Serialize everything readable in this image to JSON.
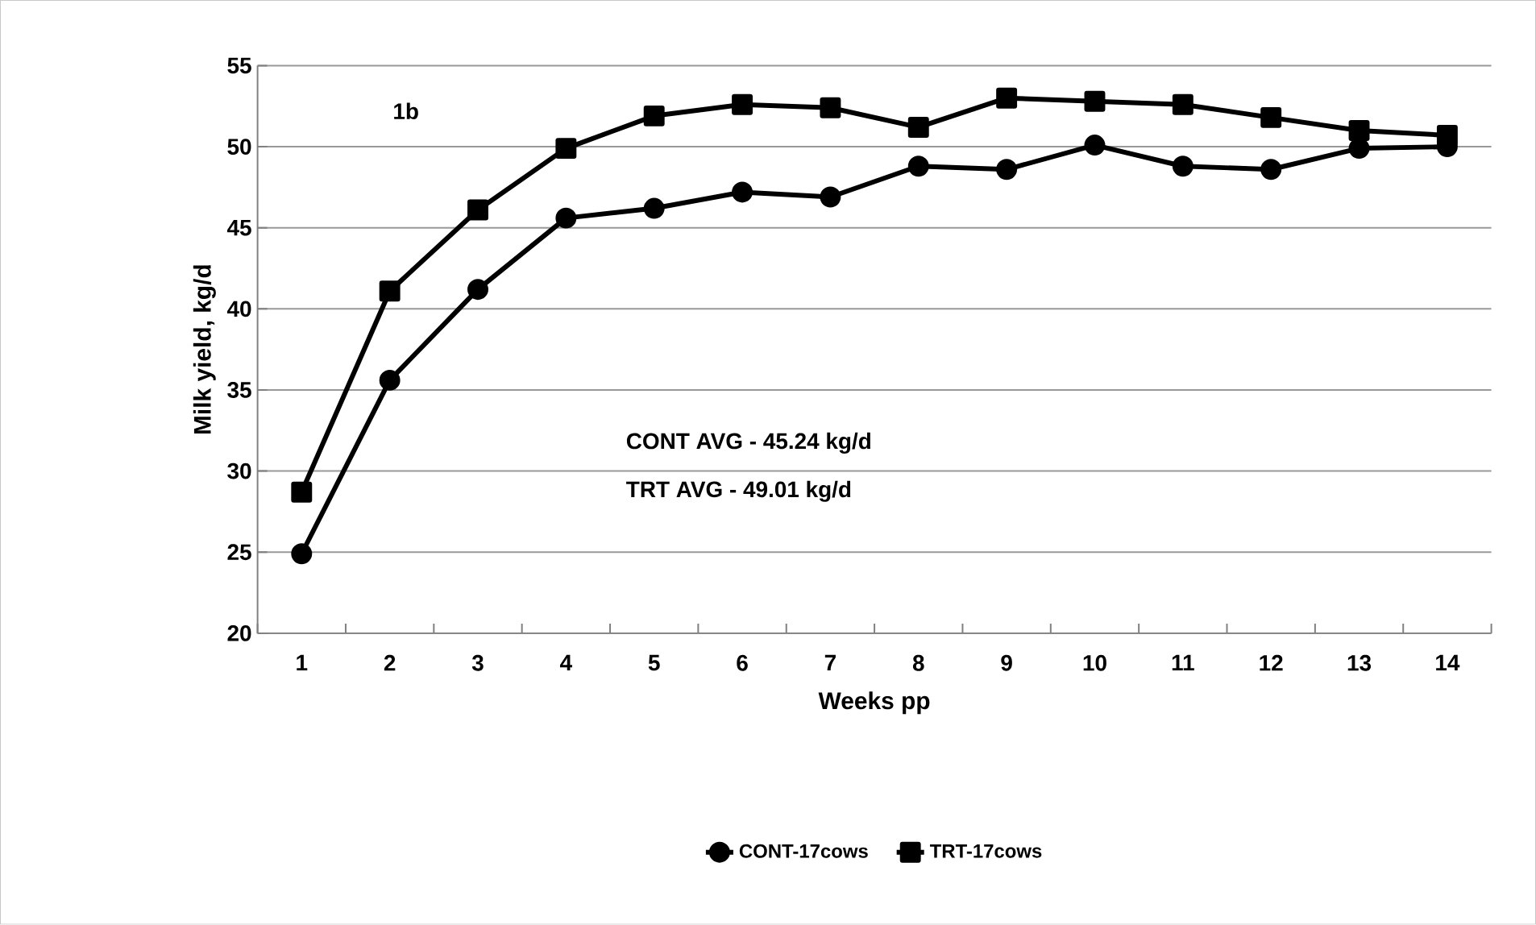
{
  "chart_data": {
    "type": "line",
    "xlabel": "Weeks pp",
    "ylabel": "Milk yield, kg/d",
    "categories": [
      "1",
      "2",
      "3",
      "4",
      "5",
      "6",
      "7",
      "8",
      "9",
      "10",
      "11",
      "12",
      "13",
      "14"
    ],
    "series": [
      {
        "name": "CONT-17cows",
        "color": "#000000",
        "marker": "circle",
        "values": [
          24.9,
          35.6,
          41.2,
          45.6,
          46.2,
          47.2,
          46.9,
          48.8,
          48.6,
          50.1,
          48.8,
          48.6,
          49.9,
          50.0
        ]
      },
      {
        "name": "TRT-17cows",
        "color": "#000000",
        "marker": "square",
        "values": [
          28.7,
          41.1,
          46.1,
          49.9,
          51.9,
          52.6,
          52.4,
          51.2,
          53.0,
          52.8,
          52.6,
          51.8,
          51.0,
          50.7
        ]
      }
    ],
    "annotations": [
      "1b",
      "CONT AVG - 45.24 kg/d",
      "TRT AVG - 49.01 kg/d"
    ],
    "ylim": [
      20,
      55
    ],
    "yticks": [
      20,
      25,
      30,
      35,
      40,
      45,
      50,
      55
    ],
    "grid": "y",
    "legend": "bottom",
    "line_style": "solid"
  }
}
